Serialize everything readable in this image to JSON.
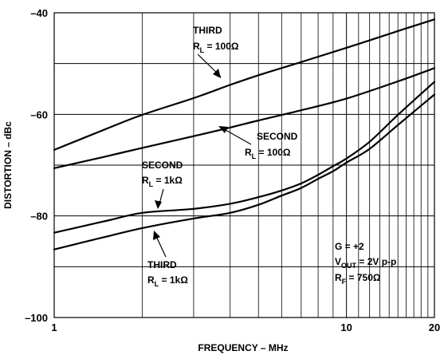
{
  "chart_data": {
    "type": "line",
    "title": "",
    "xlabel": "FREQUENCY – MHz",
    "ylabel": "DISTORTION – dBc",
    "xscale": "log",
    "xlim": [
      1,
      20
    ],
    "ylim": [
      -100,
      -40
    ],
    "grid": true,
    "x_ticks": [
      {
        "value": 1,
        "label": "1"
      },
      {
        "value": 10,
        "label": "10"
      },
      {
        "value": 20,
        "label": "20"
      }
    ],
    "y_ticks": [
      {
        "value": -40,
        "label": "–40"
      },
      {
        "value": -60,
        "label": "–60"
      },
      {
        "value": -80,
        "label": "–80"
      },
      {
        "value": -100,
        "label": "–100"
      }
    ],
    "series": [
      {
        "key": "third_100",
        "x": [
          1,
          1.5,
          2,
          3,
          4,
          5,
          7,
          10,
          15,
          20
        ],
        "y": [
          -67.0,
          -62.9,
          -60.1,
          -56.8,
          -54.2,
          -52.3,
          -49.7,
          -46.9,
          -43.6,
          -41.3
        ]
      },
      {
        "key": "second_100",
        "x": [
          1,
          1.5,
          2,
          3,
          4,
          5,
          7,
          10,
          15,
          20
        ],
        "y": [
          -70.6,
          -68.3,
          -66.6,
          -64.3,
          -62.6,
          -61.2,
          -59.2,
          -56.9,
          -53.5,
          -50.9
        ]
      },
      {
        "key": "second_1k",
        "x": [
          1,
          1.5,
          2,
          3,
          4,
          5,
          6,
          7,
          8,
          9,
          10,
          12,
          15,
          20
        ],
        "y": [
          -83.3,
          -81.0,
          -79.4,
          -78.6,
          -77.6,
          -76.3,
          -75.0,
          -73.6,
          -71.9,
          -70.2,
          -68.7,
          -65.4,
          -60.1,
          -53.6
        ]
      },
      {
        "key": "third_1k",
        "x": [
          1,
          1.5,
          2,
          3,
          4,
          5,
          6,
          7,
          8,
          9,
          10,
          12,
          15,
          20
        ],
        "y": [
          -86.6,
          -84.1,
          -82.4,
          -80.5,
          -79.4,
          -77.8,
          -76.0,
          -74.5,
          -72.7,
          -71.2,
          -69.5,
          -66.8,
          -62.1,
          -56.1
        ]
      }
    ],
    "annotations": [
      {
        "key": "third_100",
        "line1": "THIRD",
        "line2": "R",
        "sub": "L",
        "rest": " = 100Ω"
      },
      {
        "key": "second_100",
        "line1": "SECOND",
        "line2": "R",
        "sub": "L",
        "rest": " = 100Ω"
      },
      {
        "key": "second_1k",
        "line1": "SECOND",
        "line2": "R",
        "sub": "L",
        "rest": " = 1kΩ"
      },
      {
        "key": "third_1k",
        "line1": "THIRD",
        "line2": "R",
        "sub": "L",
        "rest": " = 1kΩ"
      }
    ],
    "conditions": {
      "gain": "G = +2",
      "vout_main": "V",
      "vout_sub": "OUT",
      "vout_rest": " = 2V p-p",
      "rf_main": "R",
      "rf_sub": "F",
      "rf_rest": " = 750Ω"
    }
  }
}
